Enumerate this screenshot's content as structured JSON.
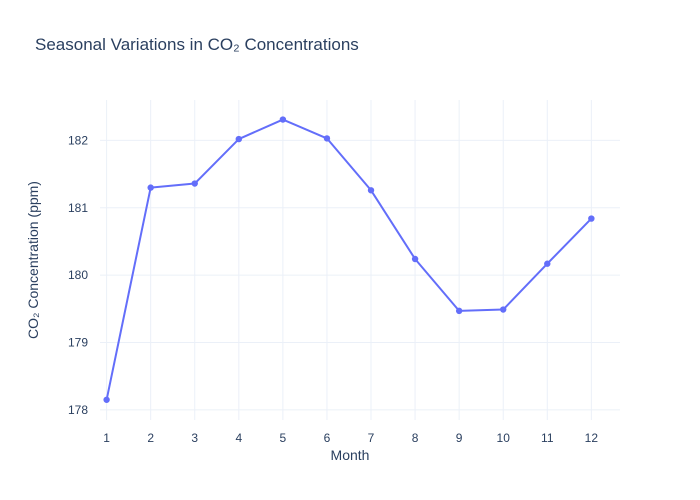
{
  "chart_data": {
    "type": "line",
    "title": "Seasonal Variations in CO₂ Concentrations",
    "xlabel": "Month",
    "ylabel": "CO₂ Concentration (ppm)",
    "x": [
      1,
      2,
      3,
      4,
      5,
      6,
      7,
      8,
      9,
      10,
      11,
      12
    ],
    "x_tick_labels": [
      "1",
      "2",
      "3",
      "4",
      "5",
      "6",
      "7",
      "8",
      "9",
      "10",
      "11",
      "12"
    ],
    "xlim": [
      0.85,
      12.65
    ],
    "ylim": [
      177.85,
      182.6
    ],
    "y_ticks": [
      178,
      179,
      180,
      181,
      182
    ],
    "y_tick_labels": [
      "178",
      "179",
      "180",
      "181",
      "182"
    ],
    "series": [
      {
        "values": [
          178.15,
          181.3,
          181.36,
          182.02,
          182.31,
          182.03,
          181.26,
          180.24,
          179.47,
          179.49,
          180.17,
          180.84
        ],
        "color": "#636efa",
        "mode": "lines+markers"
      }
    ],
    "grid": true,
    "legend": "none",
    "background": "#ffffff"
  }
}
